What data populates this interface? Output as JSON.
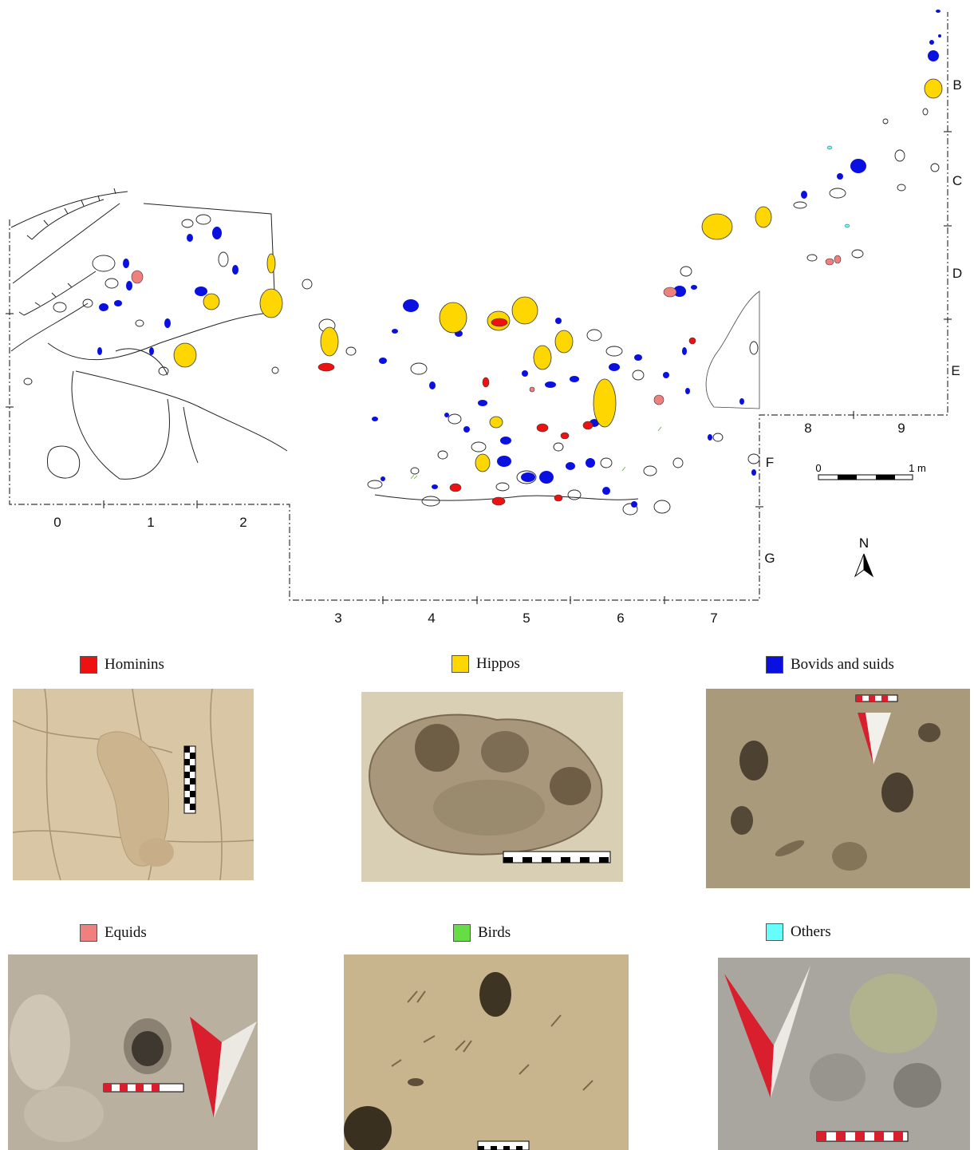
{
  "map": {
    "column_labels": [
      "0",
      "1",
      "2",
      "3",
      "4",
      "5",
      "6",
      "7",
      "8",
      "9"
    ],
    "row_labels": [
      "B",
      "C",
      "D",
      "E",
      "F",
      "G"
    ],
    "north_label": "N",
    "scale_start": "0",
    "scale_end": "1 m"
  },
  "legend": [
    {
      "key": "hominins",
      "label": "Hominins",
      "color": "#ee1111"
    },
    {
      "key": "hippos",
      "label": "Hippos",
      "color": "#ffd700"
    },
    {
      "key": "bovids",
      "label": "Bovids and suids",
      "color": "#0a10e0"
    },
    {
      "key": "equids",
      "label": "Equids",
      "color": "#f08080"
    },
    {
      "key": "birds",
      "label": "Birds",
      "color": "#66dd44"
    },
    {
      "key": "others",
      "label": "Others",
      "color": "#66ffff"
    }
  ]
}
